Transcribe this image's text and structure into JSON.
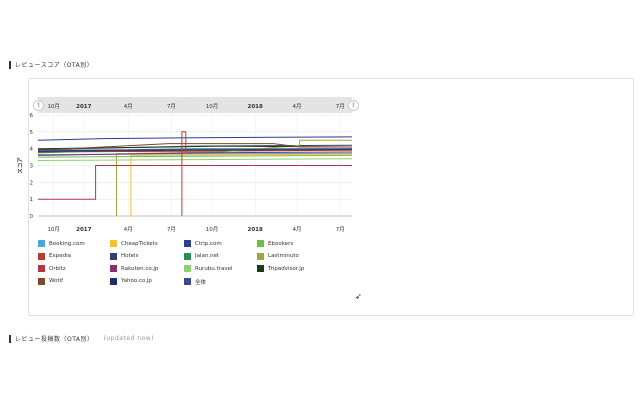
{
  "section1": {
    "title": "レビュースコア（OTA別）"
  },
  "section2": {
    "title": "レビュー投稿数（OTA別）",
    "note": "(updated now)"
  },
  "navigator": {
    "labels": [
      "10月",
      "2017",
      "4月",
      "7月",
      "10月",
      "2018",
      "4月",
      "7月"
    ]
  },
  "chart_data": {
    "type": "line",
    "ylabel": "スコア",
    "ylim": [
      0,
      6
    ],
    "yticks": [
      0,
      1,
      2,
      3,
      4,
      5,
      6
    ],
    "x_tick_labels": [
      "10月",
      "2017",
      "4月",
      "7月",
      "10月",
      "2018",
      "4月",
      "7月"
    ],
    "grid": true,
    "legend_position": "bottom",
    "series": [
      {
        "name": "Booking.com",
        "color": "#4da6d9",
        "points": [
          [
            0,
            3.65
          ],
          [
            12,
            3.7
          ],
          [
            24,
            3.72
          ]
        ]
      },
      {
        "name": "CheapTickets",
        "color": "#f2c230",
        "points": [
          [
            7.1,
            0
          ],
          [
            7.1,
            3.6
          ],
          [
            24,
            3.68
          ]
        ]
      },
      {
        "name": "Ctrip.com",
        "color": "#2b3f8c",
        "points": [
          [
            0,
            4.5
          ],
          [
            5,
            4.6
          ],
          [
            12,
            4.65
          ],
          [
            24,
            4.7
          ]
        ]
      },
      {
        "name": "Ebookers",
        "color": "#6abf4b",
        "points": [
          [
            0,
            3.5
          ],
          [
            12,
            3.55
          ],
          [
            24,
            3.6
          ]
        ]
      },
      {
        "name": "Expedia",
        "color": "#c0392b",
        "points": [
          [
            0,
            3.8
          ],
          [
            12,
            3.85
          ],
          [
            24,
            3.9
          ]
        ]
      },
      {
        "name": "Hotels",
        "color": "#3b3b6b",
        "points": [
          [
            0,
            3.95
          ],
          [
            6,
            4.05
          ],
          [
            12,
            4.15
          ],
          [
            24,
            4.2
          ]
        ]
      },
      {
        "name": "Jalan.net",
        "color": "#2e8b57",
        "points": [
          [
            0,
            3.75
          ],
          [
            4,
            3.85
          ],
          [
            8,
            3.95
          ],
          [
            12,
            4.0
          ],
          [
            24,
            4.0
          ]
        ]
      },
      {
        "name": "Lastminuto",
        "color": "#9aa83a",
        "points": [
          [
            6,
            0
          ],
          [
            6,
            3.7
          ],
          [
            14,
            3.8
          ],
          [
            20,
            4.2
          ],
          [
            20,
            4.5
          ],
          [
            24,
            4.5
          ]
        ]
      },
      {
        "name": "Orbitz",
        "color": "#b83247",
        "points": [
          [
            0,
            1.0
          ],
          [
            4.4,
            1.0
          ],
          [
            4.4,
            3.0
          ],
          [
            24,
            3.0
          ]
        ]
      },
      {
        "name": "Rakuten.co.jp",
        "color": "#8b2e6e",
        "points": [
          [
            0,
            3.6
          ],
          [
            8,
            3.7
          ],
          [
            12,
            3.75
          ],
          [
            24,
            3.8
          ]
        ]
      },
      {
        "name": "Rurubu.travel",
        "color": "#8fd16b",
        "points": [
          [
            0,
            3.3
          ],
          [
            12,
            3.35
          ],
          [
            24,
            3.4
          ]
        ]
      },
      {
        "name": "Tripadvisor.jp",
        "color": "#1b3a1b",
        "points": [
          [
            0,
            4.0
          ],
          [
            10,
            4.1
          ],
          [
            14,
            4.15
          ],
          [
            24,
            4.1
          ]
        ]
      },
      {
        "name": "Wotif",
        "color": "#7a4a2a",
        "points": [
          [
            0,
            3.9
          ],
          [
            10,
            4.3
          ],
          [
            14,
            4.3
          ],
          [
            18,
            4.3
          ],
          [
            20,
            4.1
          ],
          [
            24,
            4.1
          ]
        ]
      },
      {
        "name": "Yahoo.co.jp",
        "color": "#1f2f6b",
        "points": [
          [
            0,
            3.85
          ],
          [
            12,
            3.9
          ],
          [
            24,
            3.95
          ]
        ]
      },
      {
        "name": "全体",
        "color": "#3a4a8a",
        "points": [
          [
            0,
            3.9
          ],
          [
            12,
            3.95
          ],
          [
            24,
            4.0
          ]
        ]
      }
    ],
    "spike": {
      "color": "#c0392b",
      "points": [
        [
          11,
          0
        ],
        [
          11,
          5.0
        ],
        [
          11.3,
          5.0
        ],
        [
          11.3,
          3.8
        ]
      ]
    }
  }
}
